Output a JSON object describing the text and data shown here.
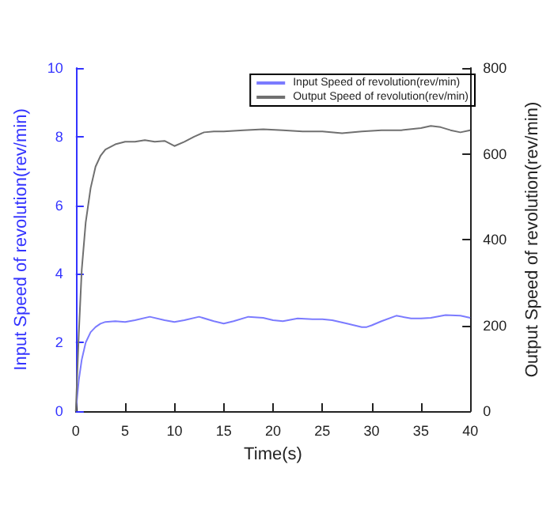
{
  "chart_data": {
    "type": "line",
    "xlabel": "Time(s)",
    "ylabel": "Input Speed of revolution(rev/min)",
    "y2label": "Output Speed of revolution(rev/min)",
    "xlim": [
      0,
      40
    ],
    "xticks": [
      0,
      5,
      10,
      15,
      20,
      25,
      30,
      35,
      40
    ],
    "ylim": [
      0,
      10
    ],
    "yticks": [
      0,
      2,
      4,
      6,
      8,
      10
    ],
    "y2lim": [
      0,
      800
    ],
    "y2ticks": [
      0,
      200,
      400,
      600,
      800
    ],
    "legend": "top right",
    "grid": false,
    "marker": "none",
    "line_style": "solid",
    "series": [
      {
        "name": "Input Speed of revolution(rev/min)",
        "color": "#7b7bff",
        "x": [
          0,
          0.3,
          0.6,
          1,
          1.5,
          2,
          2.5,
          3,
          4,
          5,
          6,
          7.5,
          9,
          10,
          11,
          12.5,
          14,
          15,
          16,
          17.5,
          19,
          20,
          21,
          22.5,
          24,
          25,
          26,
          27.5,
          29,
          29.5,
          30,
          31,
          32.5,
          34,
          35,
          36,
          37.5,
          39,
          40
        ],
        "values": [
          0,
          0.9,
          1.5,
          2,
          2.3,
          2.45,
          2.55,
          2.6,
          2.62,
          2.6,
          2.65,
          2.75,
          2.65,
          2.6,
          2.65,
          2.75,
          2.62,
          2.55,
          2.62,
          2.75,
          2.72,
          2.65,
          2.62,
          2.7,
          2.68,
          2.68,
          2.65,
          2.55,
          2.45,
          2.45,
          2.5,
          2.62,
          2.78,
          2.7,
          2.7,
          2.72,
          2.8,
          2.78,
          2.72
        ]
      },
      {
        "name": "Output Speed of revolution(rev/min)",
        "color": "#707070",
        "axis": "y2",
        "x": [
          0,
          0.3,
          0.6,
          1,
          1.5,
          2,
          2.5,
          3,
          4,
          5,
          6,
          7,
          8,
          9,
          10,
          11,
          12,
          13,
          14,
          15,
          17,
          19,
          21,
          23,
          25,
          27,
          29,
          31,
          33,
          35,
          36,
          37,
          38,
          39,
          40
        ],
        "values": [
          0,
          180,
          330,
          440,
          520,
          570,
          595,
          610,
          622,
          628,
          628,
          632,
          628,
          630,
          618,
          628,
          640,
          650,
          652,
          652,
          655,
          657,
          655,
          652,
          652,
          648,
          652,
          655,
          655,
          660,
          665,
          662,
          655,
          650,
          655
        ]
      }
    ]
  }
}
